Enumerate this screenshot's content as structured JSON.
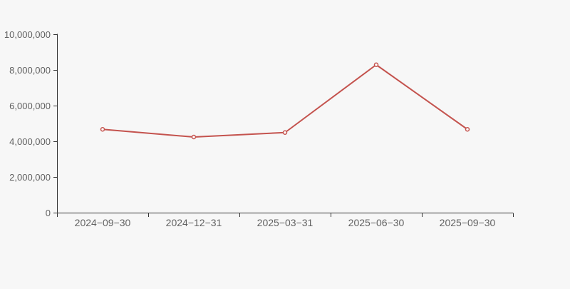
{
  "page": {
    "background_color": "#f7f7f7"
  },
  "chart_data": {
    "type": "line",
    "categories": [
      "2024−09−30",
      "2024−12−31",
      "2025−03−31",
      "2025−06−30",
      "2025−09−30"
    ],
    "values": [
      4670000,
      4240000,
      4490000,
      8290000,
      4670000
    ],
    "xlabel": "",
    "ylabel": "",
    "ylim": [
      0,
      10000000
    ],
    "y_ticks": [
      {
        "value": 0,
        "label": "0"
      },
      {
        "value": 2000000,
        "label": "2,000,000"
      },
      {
        "value": 4000000,
        "label": "4,000,000"
      },
      {
        "value": 6000000,
        "label": "6,000,000"
      },
      {
        "value": 8000000,
        "label": "8,000,000"
      },
      {
        "value": 10000000,
        "label": "10,000,000"
      }
    ],
    "grid": false,
    "legend": false,
    "marker": "empty-circle",
    "colors": {
      "line": "#c4534e",
      "marker_fill": "#ffffff",
      "axis": "#333333",
      "label": "#616161",
      "background": "#f7f7f7"
    }
  }
}
